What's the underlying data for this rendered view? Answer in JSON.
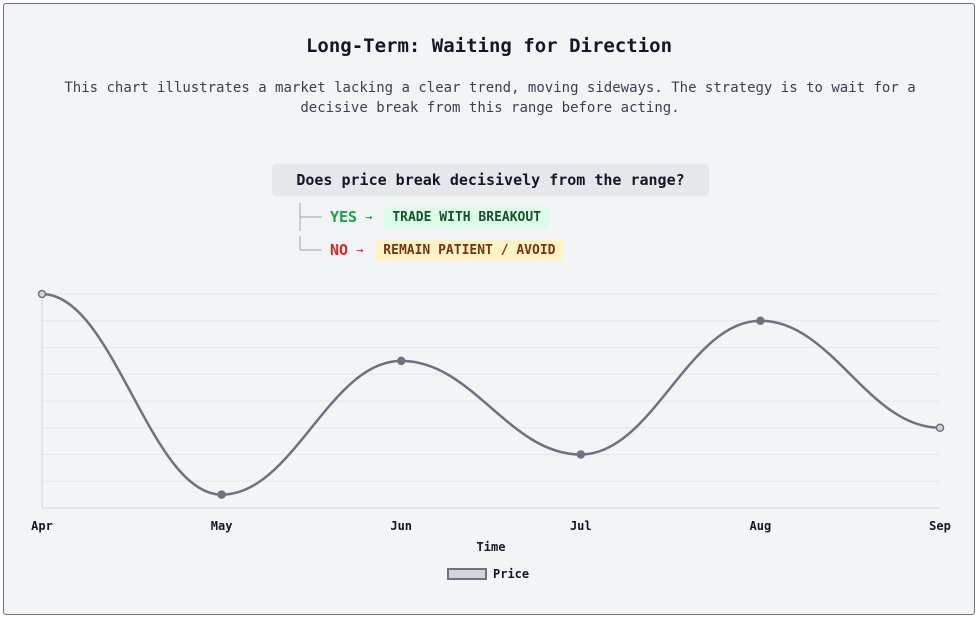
{
  "header": {
    "title": "Long-Term: Waiting for Direction",
    "subtitle": "This chart illustrates a market lacking a clear trend, moving sideways. The strategy is to wait for a decisive break from this range before acting."
  },
  "decision": {
    "question": "Does price break decisively from the range?",
    "yes": {
      "label": "YES",
      "arrow": "→",
      "action": "TRADE WITH BREAKOUT"
    },
    "no": {
      "label": "NO",
      "arrow": "→",
      "action": "REMAIN PATIENT / AVOID"
    }
  },
  "chart_data": {
    "type": "line",
    "categories": [
      "Apr",
      "May",
      "Jun",
      "Jul",
      "Aug",
      "Sep"
    ],
    "series": [
      {
        "name": "Price",
        "values": [
          96,
          21,
          71,
          36,
          86,
          46
        ]
      }
    ],
    "title": "",
    "xlabel": "Time",
    "ylabel": "",
    "ylim": [
      16,
      96
    ],
    "grid": true,
    "legend": "bottom",
    "colors": {
      "line": "#6b7280",
      "fill": "#d1d5db",
      "grid": "#e5e7eb"
    }
  }
}
